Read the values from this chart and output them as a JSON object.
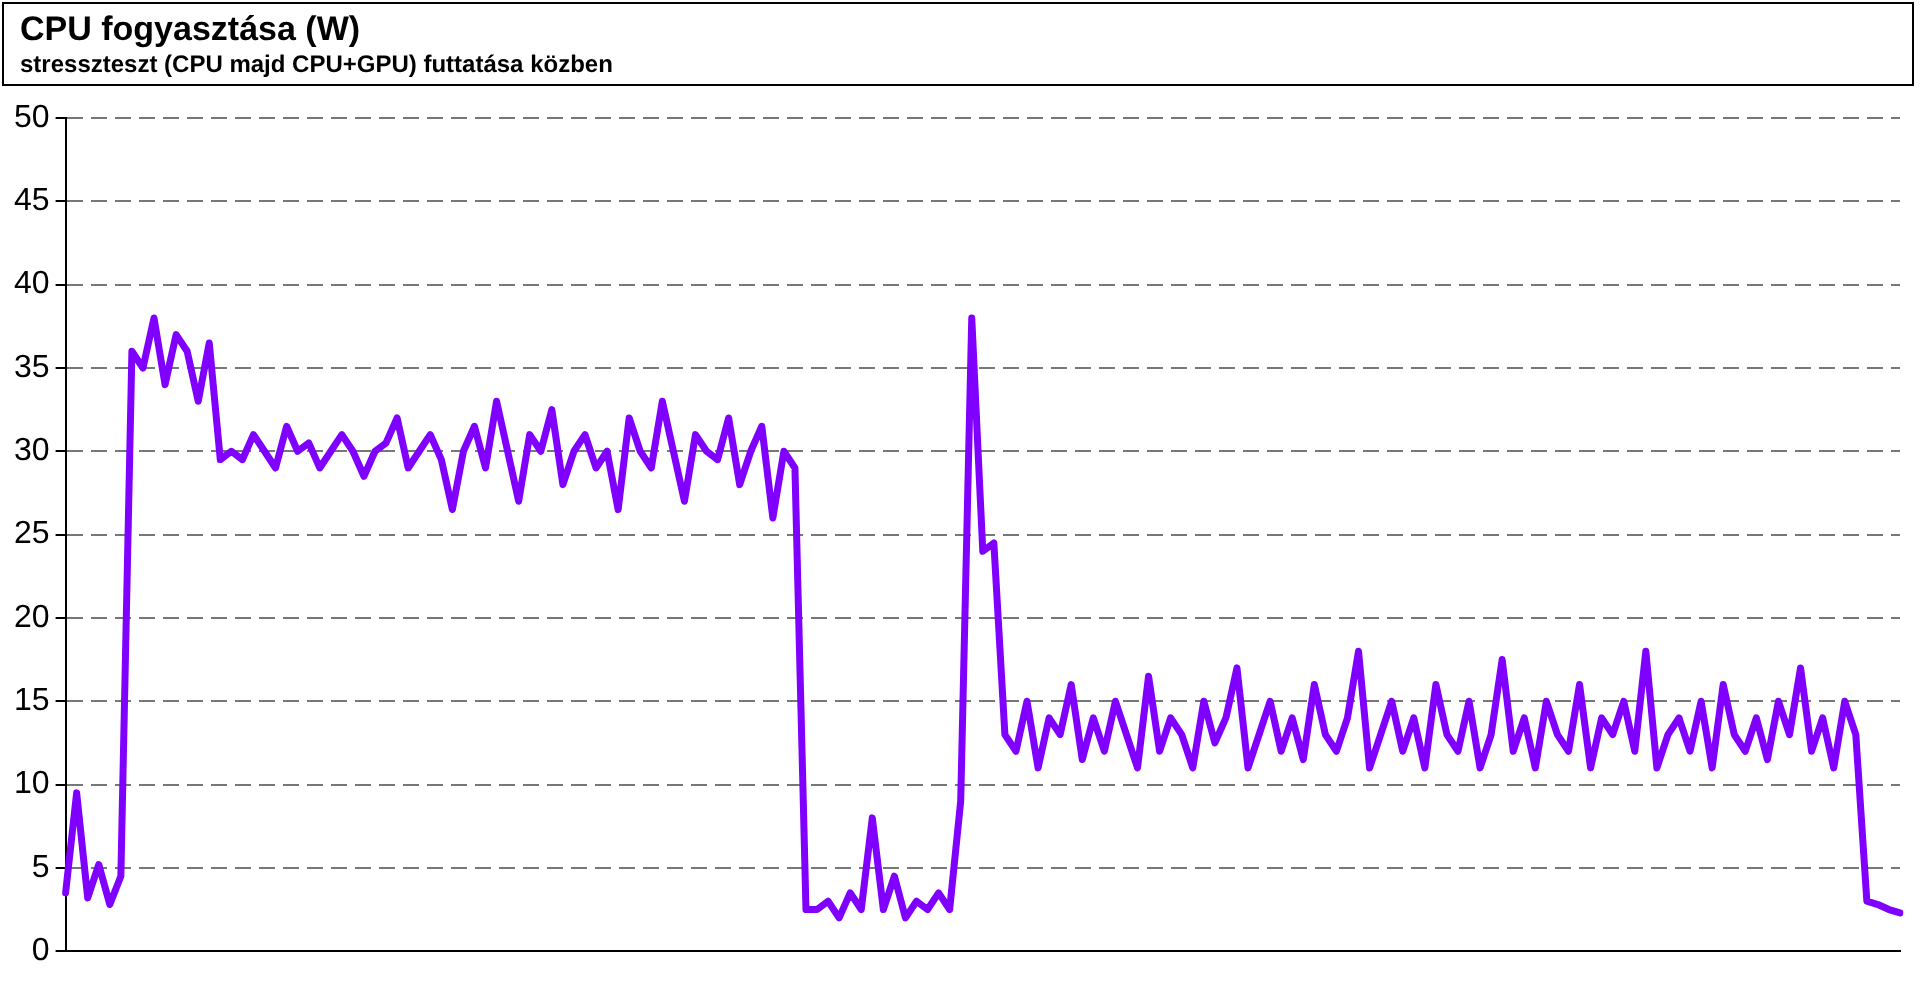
{
  "chart_data": {
    "type": "line",
    "title": "CPU fogyasztása (W)",
    "subtitle": "stresszteszt (CPU majd CPU+GPU) futtatása közben",
    "categories": [
      null,
      null,
      null,
      null,
      null,
      null,
      null,
      null,
      null,
      null,
      null,
      null,
      null,
      null,
      null,
      null,
      null,
      null,
      null,
      null,
      null,
      null,
      null,
      null,
      null,
      null,
      null,
      null,
      null,
      null,
      null,
      null,
      null,
      null,
      null,
      null,
      null,
      null,
      null,
      null,
      null,
      null,
      null,
      null,
      null,
      null,
      null,
      null,
      null,
      null,
      null,
      null,
      null,
      null,
      null,
      null,
      null,
      null,
      null,
      null,
      null,
      null,
      null,
      null,
      null,
      null,
      null,
      null,
      null,
      null,
      null,
      null,
      null,
      null,
      null,
      null,
      null,
      null,
      null,
      null,
      null,
      null,
      null,
      null,
      null,
      null,
      null,
      null,
      null,
      null,
      null,
      null,
      null,
      null,
      null,
      null,
      null,
      null,
      null,
      null,
      null,
      null,
      null,
      null,
      null,
      null,
      null,
      null,
      null,
      null,
      null,
      null,
      null,
      null,
      null,
      null,
      null,
      null,
      null,
      null,
      null,
      null,
      null,
      null,
      null,
      null,
      null,
      null,
      null,
      null,
      null,
      null,
      null,
      null,
      null,
      null,
      null,
      null,
      null,
      null,
      null,
      null,
      null,
      null,
      null,
      null,
      null,
      null,
      null,
      null,
      null,
      null,
      null,
      null,
      null,
      null,
      null,
      null,
      null,
      null,
      null,
      null,
      null,
      null,
      null,
      null,
      null
    ],
    "series": [
      {
        "color": "#8000ff",
        "values": [
          3.5,
          9.5,
          3.2,
          5.2,
          2.8,
          4.5,
          36,
          35,
          38,
          34,
          37,
          36,
          33,
          36.5,
          29.5,
          30,
          29.5,
          31,
          30,
          29,
          31.5,
          30,
          30.5,
          29,
          30,
          31,
          30,
          28.5,
          30,
          30.5,
          32,
          29,
          30,
          31,
          29.5,
          26.5,
          30,
          31.5,
          29,
          33,
          30,
          27,
          31,
          30,
          32.5,
          28,
          30,
          31,
          29,
          30,
          26.5,
          32,
          30,
          29,
          33,
          30,
          27,
          31,
          30,
          29.5,
          32,
          28,
          30,
          31.5,
          26,
          30,
          29,
          2.5,
          2.5,
          3,
          2,
          3.5,
          2.5,
          8,
          2.5,
          4.5,
          2,
          3,
          2.5,
          3.5,
          2.5,
          9,
          38,
          24,
          24.5,
          13,
          12,
          15,
          11,
          14,
          13,
          16,
          11.5,
          14,
          12,
          15,
          13,
          11,
          16.5,
          12,
          14,
          13,
          11,
          15,
          12.5,
          14,
          17,
          11,
          13,
          15,
          12,
          14,
          11.5,
          16,
          13,
          12,
          14,
          18,
          11,
          13,
          15,
          12,
          14,
          11,
          16,
          13,
          12,
          15,
          11,
          13,
          17.5,
          12,
          14,
          11,
          15,
          13,
          12,
          16,
          11,
          14,
          13,
          15,
          12,
          18,
          11,
          13,
          14,
          12,
          15,
          11,
          16,
          13,
          12,
          14,
          11.5,
          15,
          13,
          17,
          12,
          14,
          11,
          15,
          13,
          3,
          2.8,
          2.5,
          2.3
        ]
      }
    ],
    "ylim": [
      0,
      50
    ],
    "yticks": [
      0,
      5,
      10,
      15,
      20,
      25,
      30,
      35,
      40,
      45,
      50
    ],
    "grid": "y",
    "legend": false,
    "marker": "none",
    "line_style": "solid"
  }
}
